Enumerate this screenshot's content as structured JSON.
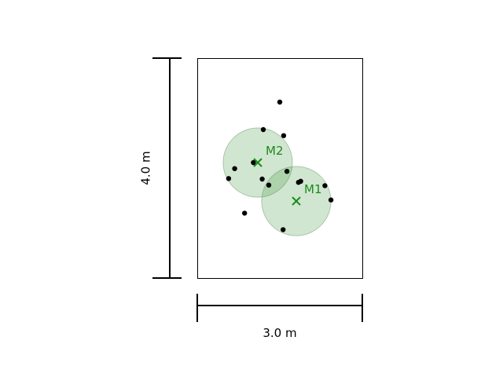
{
  "room": {
    "width_m": 3.0,
    "height_m": 4.0
  },
  "labels": {
    "width": "3.0 m",
    "height": "4.0 m"
  },
  "markers": [
    {
      "name": "M1",
      "x": 1.8,
      "y": 1.4,
      "radius_m": 0.63
    },
    {
      "name": "M2",
      "x": 1.1,
      "y": 2.1,
      "radius_m": 0.63
    }
  ],
  "points": [
    {
      "x": 1.5,
      "y": 3.2
    },
    {
      "x": 1.2,
      "y": 2.7
    },
    {
      "x": 1.57,
      "y": 2.59
    },
    {
      "x": 0.68,
      "y": 1.99
    },
    {
      "x": 1.02,
      "y": 2.1
    },
    {
      "x": 0.57,
      "y": 1.81
    },
    {
      "x": 1.18,
      "y": 1.8
    },
    {
      "x": 1.63,
      "y": 1.94
    },
    {
      "x": 1.3,
      "y": 1.69
    },
    {
      "x": 1.84,
      "y": 1.74
    },
    {
      "x": 1.88,
      "y": 1.76
    },
    {
      "x": 2.32,
      "y": 1.68
    },
    {
      "x": 2.43,
      "y": 1.42
    },
    {
      "x": 0.86,
      "y": 1.18
    },
    {
      "x": 1.56,
      "y": 0.88
    }
  ],
  "colors": {
    "marker": "#1a8a1a",
    "circle_fill": "rgba(60,150,60,0.24)"
  }
}
